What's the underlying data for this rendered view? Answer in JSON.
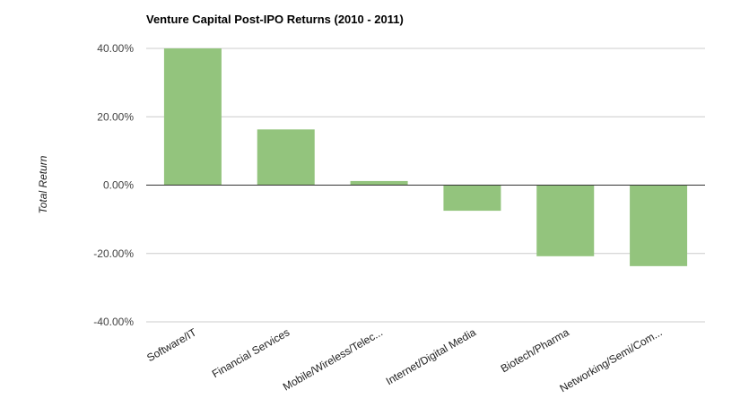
{
  "chart_data": {
    "type": "bar",
    "title": "Venture Capital Post-IPO Returns (2010 - 2011)",
    "xlabel": "",
    "ylabel": "Total Return",
    "categories": [
      "Software/IT",
      "Financial Services",
      "Mobile/Wireless/Telec...",
      "Internet/Digital Media",
      "Biotech/Pharma",
      "Networking/Semi/Com..."
    ],
    "values": [
      40.0,
      16.3,
      1.2,
      -7.5,
      -20.8,
      -23.7
    ],
    "ylim": [
      -40,
      40
    ],
    "yticks": [
      "40.00%",
      "20.00%",
      "0.00%",
      "-20.00%",
      "-40.00%"
    ],
    "bar_color": "#93c47d",
    "grid": true,
    "legend": "none"
  }
}
